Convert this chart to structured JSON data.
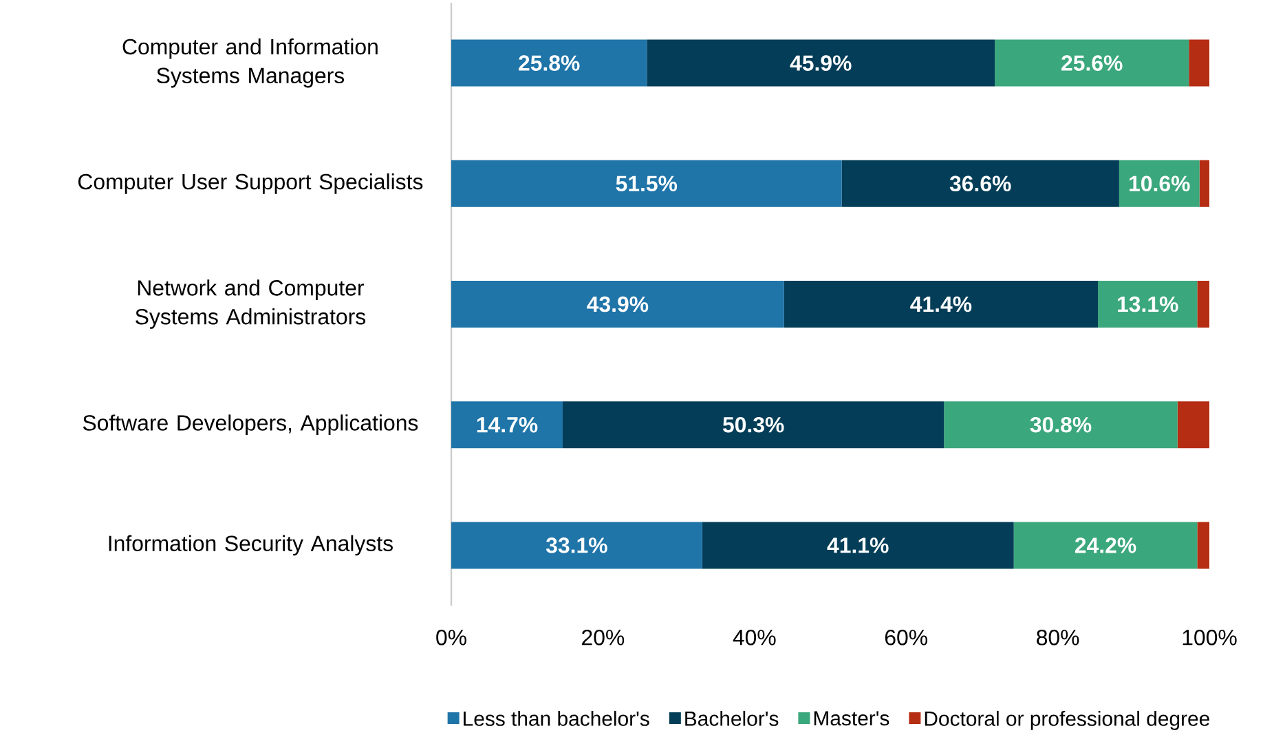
{
  "chart_data": {
    "type": "bar",
    "orientation": "horizontal",
    "stacked": true,
    "categories": [
      "Computer and Information Systems Managers",
      "Computer User Support Specialists",
      "Network and Computer Systems Administrators",
      "Software Developers, Applications",
      "Information Security Analysts"
    ],
    "series": [
      {
        "name": "Less than bachelor's",
        "color": "#1f74a8",
        "values": [
          25.8,
          51.5,
          43.9,
          14.7,
          33.1
        ],
        "value_labels": [
          "25.8%",
          "51.5%",
          "43.9%",
          "14.7%",
          "33.1%"
        ]
      },
      {
        "name": "Bachelor's",
        "color": "#033d57",
        "values": [
          45.9,
          36.6,
          41.4,
          50.3,
          41.1
        ],
        "value_labels": [
          "45.9%",
          "36.6%",
          "41.4%",
          "50.3%",
          "41.1%"
        ]
      },
      {
        "name": "Master's",
        "color": "#3ba77c",
        "values": [
          25.6,
          10.6,
          13.1,
          30.8,
          24.2
        ],
        "value_labels": [
          "25.6%",
          "10.6%",
          "13.1%",
          "30.8%",
          "24.2%"
        ]
      },
      {
        "name": "Doctoral or professional degree",
        "color": "#b52d12",
        "values": [
          2.7,
          1.3,
          1.6,
          4.2,
          1.6
        ]
      }
    ],
    "xlim": [
      0,
      100
    ],
    "xticks": [
      {
        "value": 0,
        "label": "0%"
      },
      {
        "value": 20,
        "label": "20%"
      },
      {
        "value": 40,
        "label": "40%"
      },
      {
        "value": 60,
        "label": "60%"
      },
      {
        "value": 80,
        "label": "80%"
      },
      {
        "value": 100,
        "label": "100%"
      }
    ],
    "legend": "bottom"
  }
}
